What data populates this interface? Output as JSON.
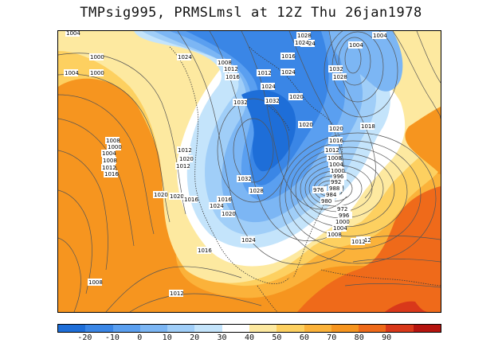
{
  "title": "TMPsig995, PRMSLmsl at 12Z Thu 26jan1978",
  "colorbar": {
    "colors": [
      "#1e6ed8",
      "#3a86e6",
      "#5a9ff0",
      "#7cb6f4",
      "#a0cef8",
      "#c4e4fb",
      "#ffffff",
      "#fde9a0",
      "#fdd060",
      "#fbb23a",
      "#f6951f",
      "#ef6a1a",
      "#d9381a",
      "#b5140f"
    ],
    "tick_labels": [
      "-20",
      "-10",
      "0",
      "10",
      "20",
      "30",
      "40",
      "50",
      "60",
      "70",
      "80",
      "90"
    ]
  },
  "isobar_labels": [
    "1004",
    "1000",
    "1004",
    "1000",
    "1024",
    "1008",
    "1012",
    "1016",
    "1028",
    "1024",
    "1024",
    "1016",
    "1032",
    "1028",
    "1004",
    "1004",
    "1032",
    "1020",
    "1024",
    "1012",
    "1024",
    "1032",
    "1020",
    "1020",
    "1018",
    "1016",
    "1012",
    "1008",
    "1004",
    "1000",
    "996",
    "992",
    "988",
    "984",
    "980",
    "976",
    "972",
    "996",
    "1000",
    "1004",
    "1008",
    "1012",
    "1020",
    "1016",
    "1016",
    "1024",
    "1020",
    "1024",
    "1016",
    "1012",
    "1020",
    "1012",
    "1032",
    "1028",
    "1008",
    "1000",
    "1004",
    "1008",
    "1012",
    "1016",
    "1020",
    "1012",
    "1008",
    "1012"
  ],
  "legend": {
    "isobar_unit_note": ""
  }
}
